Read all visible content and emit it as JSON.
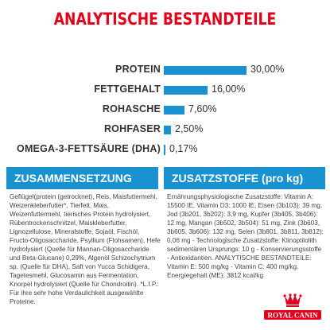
{
  "title": "ANALYTISCHE BESTANDTEILE",
  "nutrients": [
    {
      "label": "PROTEIN",
      "value": "30,00%",
      "percent": 30.0
    },
    {
      "label": "FETTGEHALT",
      "value": "16,00%",
      "percent": 16.0
    },
    {
      "label": "ROHASCHE",
      "value": "7,60%",
      "percent": 7.6
    },
    {
      "label": "ROHFASER",
      "value": "2,50%",
      "percent": 2.5
    },
    {
      "label": "OMEGA-3-FETTSÄURE (DHA)",
      "value": "0,17%",
      "percent": 0.17
    }
  ],
  "composition": {
    "heading": "ZUSAMMENSETZUNG",
    "text": "Geflügel(protein (getrocknet), Reis, Maisfuttermehl, Weizenkleberfutter*, Tierfett, Mais, Weizenfuttermehl, tierisches Protein hydrolysiert, Rübentrockenschnitzel, Maiskleberfutter, Lignozellulose, Mineralstoffe, Sojaöl, Fischöl, Fructo-Oligosaccharide, Psyllium (Flohsamen), Hefe hydrolysiert (Quelle für Mannan-Oligosaccharide und Beta-Glucane) 0,29%, Algenöl Schizochytrium sp. (Quelle für DHA), Saft von Yucca Schidigera, Tagetesmehl, Glucosamin aus Fermentation, Knorpel hydrolysiert (Quelle für Chondroitin). *L.I.P.: Für ihre sehr hohe Verdaulichkeit ausgewählte Proteine."
  },
  "additives": {
    "heading": "ZUSATZSTOFFE (pro kg)",
    "text": "Ernährungsphysiologische Zusatzstoffe: Vitamin A: 15500 IE, Vitamin D3: 1000 IE, Eisen (3b103): 39 mg, Jod (3b201, 3b202): 3,9 mg, Kupfer (3b405, 3b406): 12 mg, Mangan (3b502, 3b504): 51 mg, Zink (3b603, 3b605, 3b606): 132 mg, Selen (3b801, 3b811, 3b812): 0,06 mg - Technologische Zusatzstoffe: Klinoptilolith sedimentären Ursprungs: 10 g - Konservierungsstoffe - Antioxidantien. ANALYTISCHE BESTANDTEILE: Vitamin E: 500 mg/kg - Vitamin C: 400 mg/kg. Energiegehalt (ME): 3812 kcal/kg"
  },
  "brand": {
    "name": "ROYAL CANIN",
    "color": "#e3001b"
  },
  "colors": {
    "title": "#e3001b",
    "accent": "#1a92d0"
  }
}
